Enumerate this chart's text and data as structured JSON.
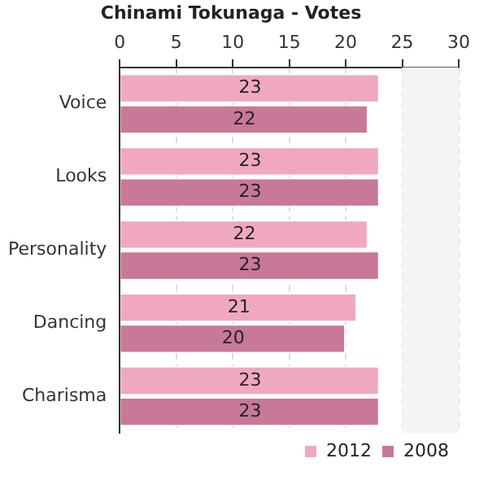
{
  "chart_data": {
    "type": "bar",
    "orientation": "horizontal",
    "title": "Chinami Tokunaga - Votes",
    "categories": [
      "Voice",
      "Looks",
      "Personality",
      "Dancing",
      "Charisma"
    ],
    "series": [
      {
        "name": "2012",
        "color": "#f0a8c0",
        "values": [
          23,
          23,
          22,
          21,
          23
        ]
      },
      {
        "name": "2008",
        "color": "#c87898",
        "values": [
          22,
          23,
          23,
          20,
          23
        ]
      }
    ],
    "xlim": [
      0,
      30
    ],
    "xticks": [
      0,
      5,
      10,
      15,
      20,
      25,
      30
    ],
    "bands": [
      {
        "axis": "x",
        "from": 25,
        "to": 30,
        "color": "#f4f4f4"
      }
    ],
    "grid": "x",
    "data_labels": true,
    "legend": "bottom right"
  }
}
